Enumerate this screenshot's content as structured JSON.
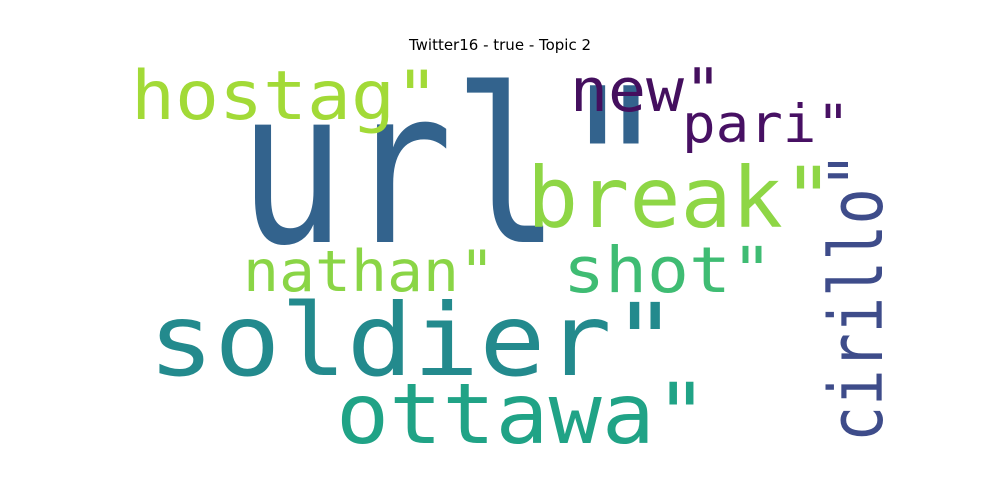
{
  "chart_data": {
    "type": "wordcloud",
    "title": "Twitter16 - true - Topic 2",
    "words": [
      {
        "text": "url\"",
        "weight": 1.0,
        "color": "#33638d",
        "orientation": "horizontal"
      },
      {
        "text": "soldier\"",
        "weight": 0.62,
        "color": "#238a8d",
        "orientation": "horizontal"
      },
      {
        "text": "ottawa\"",
        "weight": 0.52,
        "color": "#20a386",
        "orientation": "horizontal"
      },
      {
        "text": "break\"",
        "weight": 0.52,
        "color": "#8ed645",
        "orientation": "horizontal"
      },
      {
        "text": "cirillo\"",
        "weight": 0.5,
        "color": "#3e4c8a",
        "orientation": "vertical"
      },
      {
        "text": "hostag\"",
        "weight": 0.45,
        "color": "#a2da37",
        "orientation": "horizontal"
      },
      {
        "text": "shot\"",
        "weight": 0.43,
        "color": "#3fbc73",
        "orientation": "horizontal"
      },
      {
        "text": "new\"",
        "weight": 0.4,
        "color": "#440f5e",
        "orientation": "horizontal"
      },
      {
        "text": "nathan\"",
        "weight": 0.37,
        "color": "#8ad546",
        "orientation": "horizontal"
      },
      {
        "text": "pari\"",
        "weight": 0.34,
        "color": "#471063",
        "orientation": "horizontal"
      }
    ]
  }
}
